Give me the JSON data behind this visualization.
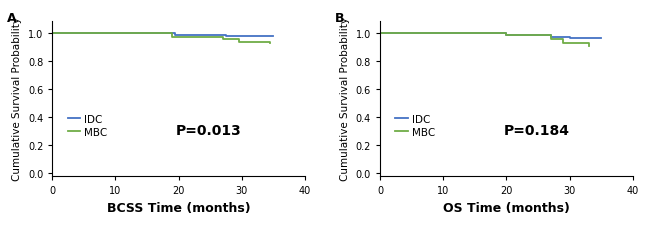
{
  "panel_A": {
    "label": "A",
    "xlabel": "BCSS Time (months)",
    "ylabel": "Cumulative Survival Probability",
    "pvalue": "P=0.013",
    "xlim": [
      0,
      40
    ],
    "ylim": [
      -0.02,
      1.09
    ],
    "yticks": [
      0.0,
      0.2,
      0.4,
      0.6,
      0.8,
      1.0
    ],
    "xticks": [
      0,
      10,
      20,
      30,
      40
    ],
    "IDC_x": [
      0,
      19.5,
      19.5,
      27.5,
      27.5,
      35
    ],
    "IDC_y": [
      1.0,
      1.0,
      0.988,
      0.988,
      0.982,
      0.982
    ],
    "MBC_x": [
      0,
      19.0,
      19.0,
      27.0,
      27.0,
      29.5,
      29.5,
      34.5,
      34.5
    ],
    "MBC_y": [
      1.0,
      1.0,
      0.975,
      0.975,
      0.955,
      0.955,
      0.94,
      0.94,
      0.928
    ]
  },
  "panel_B": {
    "label": "B",
    "xlabel": "OS Time (months)",
    "ylabel": "Cumulative Survival Probability",
    "pvalue": "P=0.184",
    "xlim": [
      0,
      40
    ],
    "ylim": [
      -0.02,
      1.09
    ],
    "yticks": [
      0.0,
      0.2,
      0.4,
      0.6,
      0.8,
      1.0
    ],
    "xticks": [
      0,
      10,
      20,
      30,
      40
    ],
    "IDC_x": [
      0,
      20,
      20,
      27,
      27,
      30,
      30,
      35
    ],
    "IDC_y": [
      1.0,
      1.0,
      0.99,
      0.99,
      0.975,
      0.975,
      0.963,
      0.963
    ],
    "MBC_x": [
      0,
      20,
      20,
      27,
      27,
      29,
      29,
      33,
      33
    ],
    "MBC_y": [
      1.0,
      1.0,
      0.988,
      0.988,
      0.96,
      0.96,
      0.93,
      0.93,
      0.91
    ]
  },
  "IDC_color": "#4472C4",
  "MBC_color": "#70AD47",
  "linewidth": 1.3,
  "legend_IDC": "IDC",
  "legend_MBC": "MBC",
  "bg_color": "#FFFFFF",
  "pvalue_fontsize": 10,
  "label_fontsize": 9,
  "ylabel_fontsize": 7.5,
  "tick_fontsize": 7,
  "xlabel_fontsize": 9,
  "legend_fontsize": 7.5
}
